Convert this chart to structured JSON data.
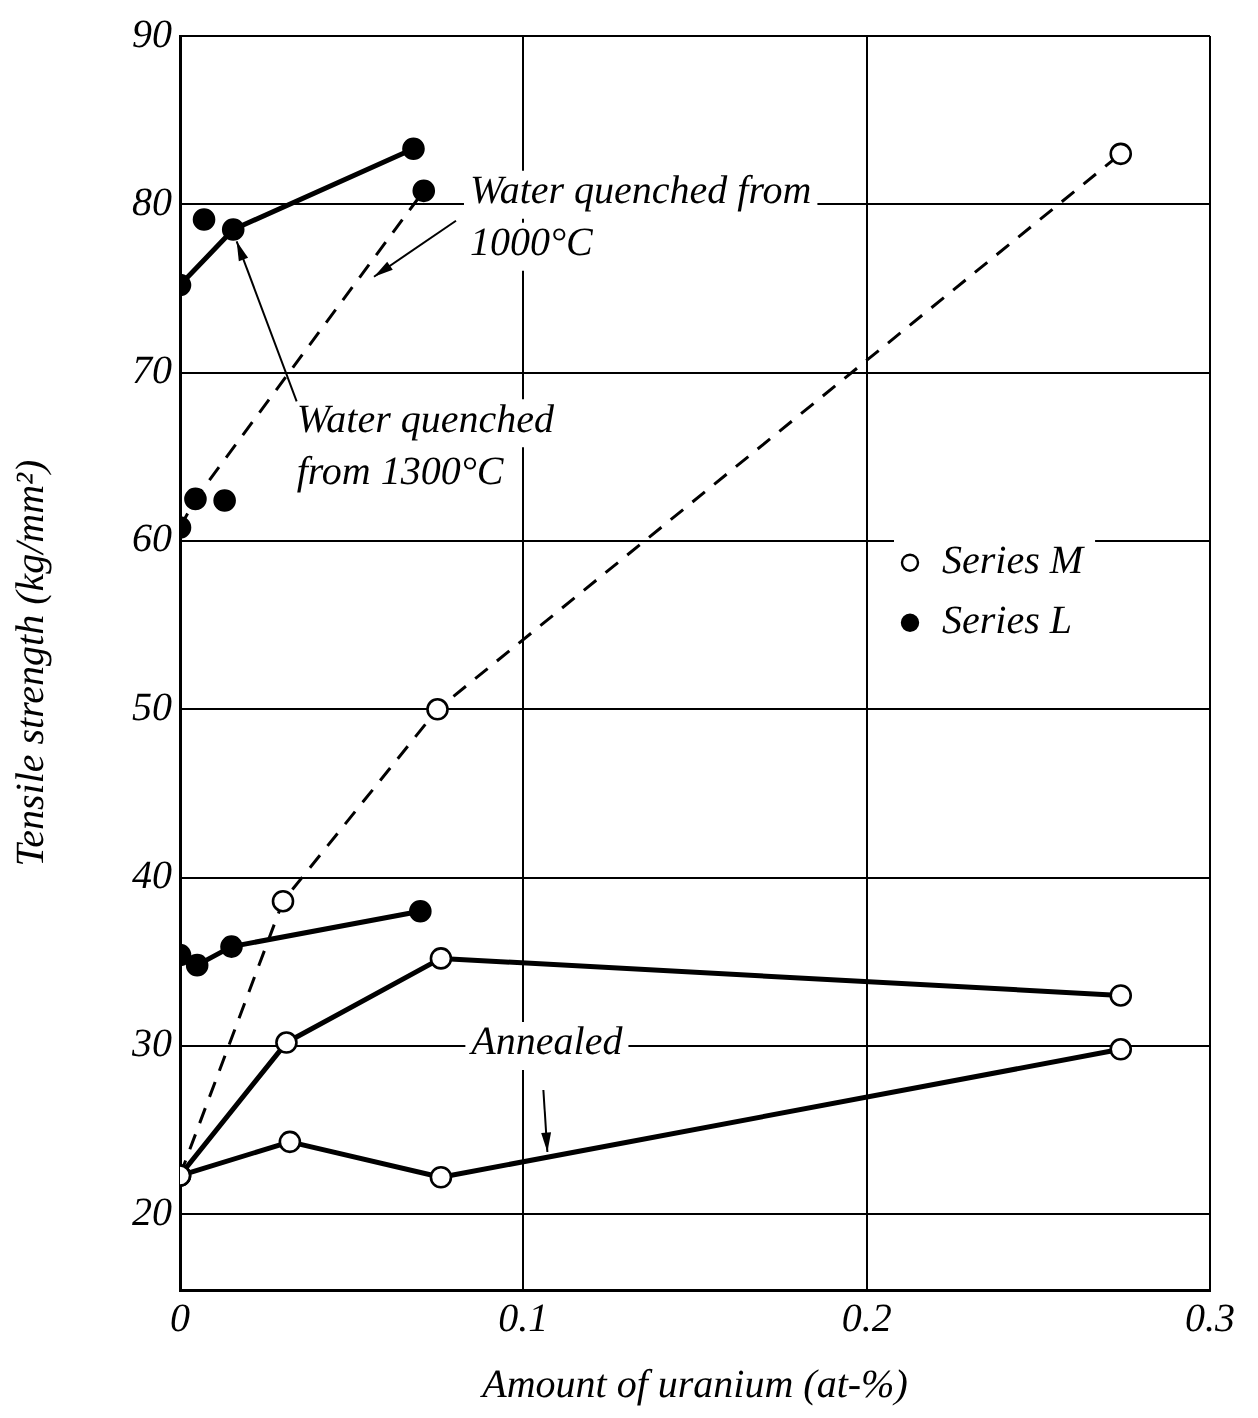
{
  "chart_data": {
    "type": "line",
    "xlabel": "Amount of uranium (at-%)",
    "ylabel": "Tensile strength (kg/mm²)",
    "xlim": [
      0,
      0.3
    ],
    "xticks": [
      0,
      0.1,
      0.2,
      0.3
    ],
    "ylim": [
      15.5,
      90
    ],
    "yticks": [
      20,
      30,
      40,
      50,
      60,
      70,
      80,
      90
    ],
    "grid": true,
    "legend": "right",
    "marker": "circle",
    "series": [
      {
        "name": "Series M",
        "color": "#000000",
        "line_style": "dashed",
        "x": [
          0,
          0.03,
          0.075,
          0.274
        ],
        "values": [
          22.3,
          38.6,
          50,
          83
        ]
      },
      {
        "color": "#000000",
        "line_style": "solid",
        "x": [
          0,
          0.031,
          0.076,
          0.274
        ],
        "values": [
          22.3,
          30.2,
          35.2,
          33
        ]
      },
      {
        "color": "#000000",
        "line_style": "solid",
        "x": [
          0,
          0.032,
          0.076,
          0.274
        ],
        "values": [
          22.3,
          24.3,
          22.2,
          29.8
        ]
      },
      {
        "name": "Series L",
        "color": "#000000",
        "line_style": "dashed",
        "x": [
          0,
          0.0045,
          0.071
        ],
        "values": [
          60.8,
          62.5,
          80.8
        ]
      },
      {
        "type": "scatter",
        "color": "#000000",
        "x": [
          0.013
        ],
        "values": [
          62.4
        ]
      },
      {
        "color": "#000000",
        "line_style": "solid",
        "x": [
          0,
          0.0155,
          0.068
        ],
        "values": [
          75.2,
          78.5,
          83.3
        ]
      },
      {
        "type": "scatter",
        "color": "#000000",
        "x": [
          0.007
        ],
        "values": [
          79.1
        ]
      },
      {
        "color": "#000000",
        "line_style": "solid",
        "x": [
          0,
          0.005,
          0.015,
          0.07
        ],
        "values": [
          35.4,
          34.8,
          35.9,
          38.0
        ]
      }
    ],
    "annotations": [
      {
        "text": "Water quenched from 1000°C",
        "x": 0.0565,
        "y": 75.7
      },
      {
        "text": "Water quenched from 1300°C",
        "x": 0.0165,
        "y": 77.8
      },
      {
        "text": "Annealed",
        "x": 0.107,
        "y": 23.7
      }
    ]
  }
}
